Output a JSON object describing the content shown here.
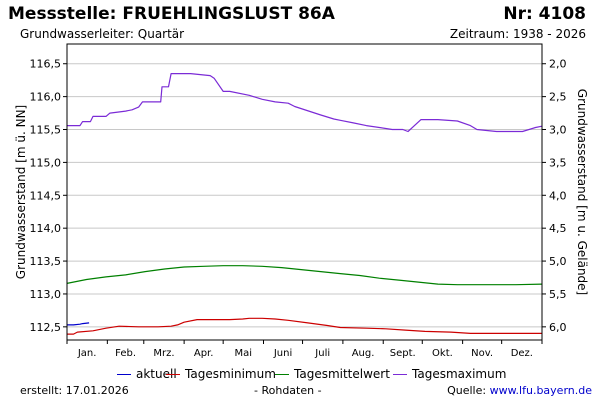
{
  "header": {
    "title": "Messstelle: FRUEHLINGSLUST 86A",
    "number": "Nr: 4108",
    "aquifer": "Grundwasserleiter: Quartär",
    "period": "Zeitraum: 1938 - 2026"
  },
  "footer": {
    "created": "erstellt:  17.01.2026",
    "raw": "- Rohdaten -",
    "source_label": "Quelle: ",
    "source_link": "www.lfu.bayern.de"
  },
  "chart_data": {
    "type": "line",
    "xlabel": "",
    "ylabel": "Grundwasserstand [m ü. NN]",
    "y2label": "Grundwasserstand [m u. Gelände]",
    "categories": [
      "Jan.",
      "Feb.",
      "Mrz.",
      "Apr.",
      "Mai",
      "Juni",
      "Juli",
      "Aug.",
      "Sept.",
      "Okt.",
      "Nov.",
      "Dez."
    ],
    "xlim": [
      0,
      365
    ],
    "ylim": [
      112.3,
      116.8
    ],
    "y_ticks": [
      "112,5",
      "113,0",
      "113,5",
      "114,0",
      "114,5",
      "115,0",
      "115,5",
      "116,0",
      "116,5"
    ],
    "y2_ticks": [
      "2,0",
      "2,5",
      "3,0",
      "3,5",
      "4,0",
      "4,5",
      "5,0",
      "5,5",
      "6,0"
    ],
    "grid": "horizontal",
    "series": [
      {
        "name": "aktuell",
        "color": "#0000cc",
        "x": [
          0,
          5,
          10,
          12,
          17
        ],
        "y": [
          112.53,
          112.53,
          112.54,
          112.55,
          112.56
        ]
      },
      {
        "name": "Tagesminimum",
        "color": "#cc0000",
        "x": [
          0,
          5,
          8,
          20,
          30,
          40,
          55,
          70,
          80,
          85,
          90,
          100,
          110,
          125,
          135,
          140,
          150,
          160,
          170,
          185,
          200,
          210,
          230,
          245,
          260,
          275,
          295,
          310,
          330,
          350,
          365
        ],
        "y": [
          112.39,
          112.39,
          112.42,
          112.44,
          112.48,
          112.51,
          112.5,
          112.5,
          112.51,
          112.53,
          112.57,
          112.61,
          112.61,
          112.61,
          112.62,
          112.63,
          112.63,
          112.62,
          112.6,
          112.56,
          112.52,
          112.49,
          112.48,
          112.47,
          112.45,
          112.43,
          112.42,
          112.4,
          112.4,
          112.4,
          112.4
        ]
      },
      {
        "name": "Tagesmittelwert",
        "color": "#008000",
        "x": [
          0,
          15,
          30,
          45,
          60,
          75,
          90,
          105,
          120,
          135,
          150,
          165,
          180,
          195,
          210,
          225,
          240,
          255,
          270,
          285,
          300,
          315,
          330,
          345,
          365
        ],
        "y": [
          113.16,
          113.22,
          113.26,
          113.29,
          113.34,
          113.38,
          113.41,
          113.42,
          113.43,
          113.43,
          113.42,
          113.4,
          113.37,
          113.34,
          113.31,
          113.28,
          113.24,
          113.21,
          113.18,
          113.15,
          113.14,
          113.14,
          113.14,
          113.14,
          113.15
        ]
      },
      {
        "name": "Tagesmaximum",
        "color": "#7b2bd6",
        "x": [
          0,
          10,
          12,
          18,
          20,
          30,
          33,
          45,
          50,
          55,
          58,
          72,
          73,
          78,
          80,
          95,
          110,
          113,
          120,
          125,
          140,
          150,
          160,
          170,
          175,
          195,
          205,
          210,
          220,
          230,
          240,
          250,
          258,
          262,
          272,
          280,
          285,
          300,
          310,
          315,
          330,
          350,
          360,
          365
        ],
        "y": [
          115.56,
          115.56,
          115.62,
          115.62,
          115.7,
          115.7,
          115.75,
          115.78,
          115.8,
          115.84,
          115.92,
          115.92,
          116.15,
          116.15,
          116.35,
          116.35,
          116.32,
          116.28,
          116.08,
          116.08,
          116.02,
          115.96,
          115.92,
          115.9,
          115.85,
          115.72,
          115.66,
          115.64,
          115.6,
          115.56,
          115.53,
          115.5,
          115.5,
          115.47,
          115.65,
          115.65,
          115.65,
          115.63,
          115.56,
          115.5,
          115.47,
          115.47,
          115.53,
          115.55
        ]
      }
    ]
  }
}
